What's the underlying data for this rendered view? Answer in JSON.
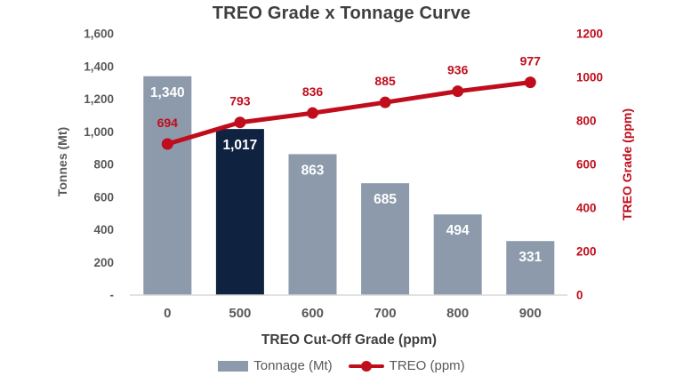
{
  "chart_data": {
    "type": "combo-bar-line",
    "title": "TREO Grade x Tonnage Curve",
    "categories": [
      "0",
      "500",
      "600",
      "700",
      "800",
      "900"
    ],
    "series": [
      {
        "name": "Tonnage (Mt)",
        "type": "bar",
        "axis": "left",
        "values": [
          1340,
          1017,
          863,
          685,
          494,
          331
        ],
        "value_labels": [
          "1,340",
          "1,017",
          "863",
          "685",
          "494",
          "331"
        ],
        "color": "#8C9AAB",
        "highlight_index": 1,
        "highlight_color": "#0F2240",
        "label_color": "#FFFFFF"
      },
      {
        "name": "TREO (ppm)",
        "type": "line",
        "axis": "right",
        "values": [
          694,
          793,
          836,
          885,
          936,
          977
        ],
        "value_labels": [
          "694",
          "793",
          "836",
          "885",
          "936",
          "977"
        ],
        "color": "#C00D1C",
        "label_color": "#C00D1C"
      }
    ],
    "left_axis": {
      "title": "Tonnes (Mt)",
      "min": 0,
      "max": 1600,
      "step": 200,
      "tick_labels": [
        "-",
        "200",
        "400",
        "600",
        "800",
        "1,000",
        "1,200",
        "1,400",
        "1,600"
      ]
    },
    "right_axis": {
      "title": "TREO Grade (ppm)",
      "min": 0,
      "max": 1200,
      "step": 200,
      "tick_labels": [
        "0",
        "200",
        "400",
        "600",
        "800",
        "1000",
        "1200"
      ]
    },
    "x_axis": {
      "title": "TREO Cut-Off Grade (ppm)"
    },
    "legend_position": "bottom",
    "grid": false,
    "colors": {
      "tick_text": "#595959",
      "title_text": "#3F3F3F",
      "axis_line": "#D9D9D9",
      "background": "#FFFFFF"
    }
  }
}
